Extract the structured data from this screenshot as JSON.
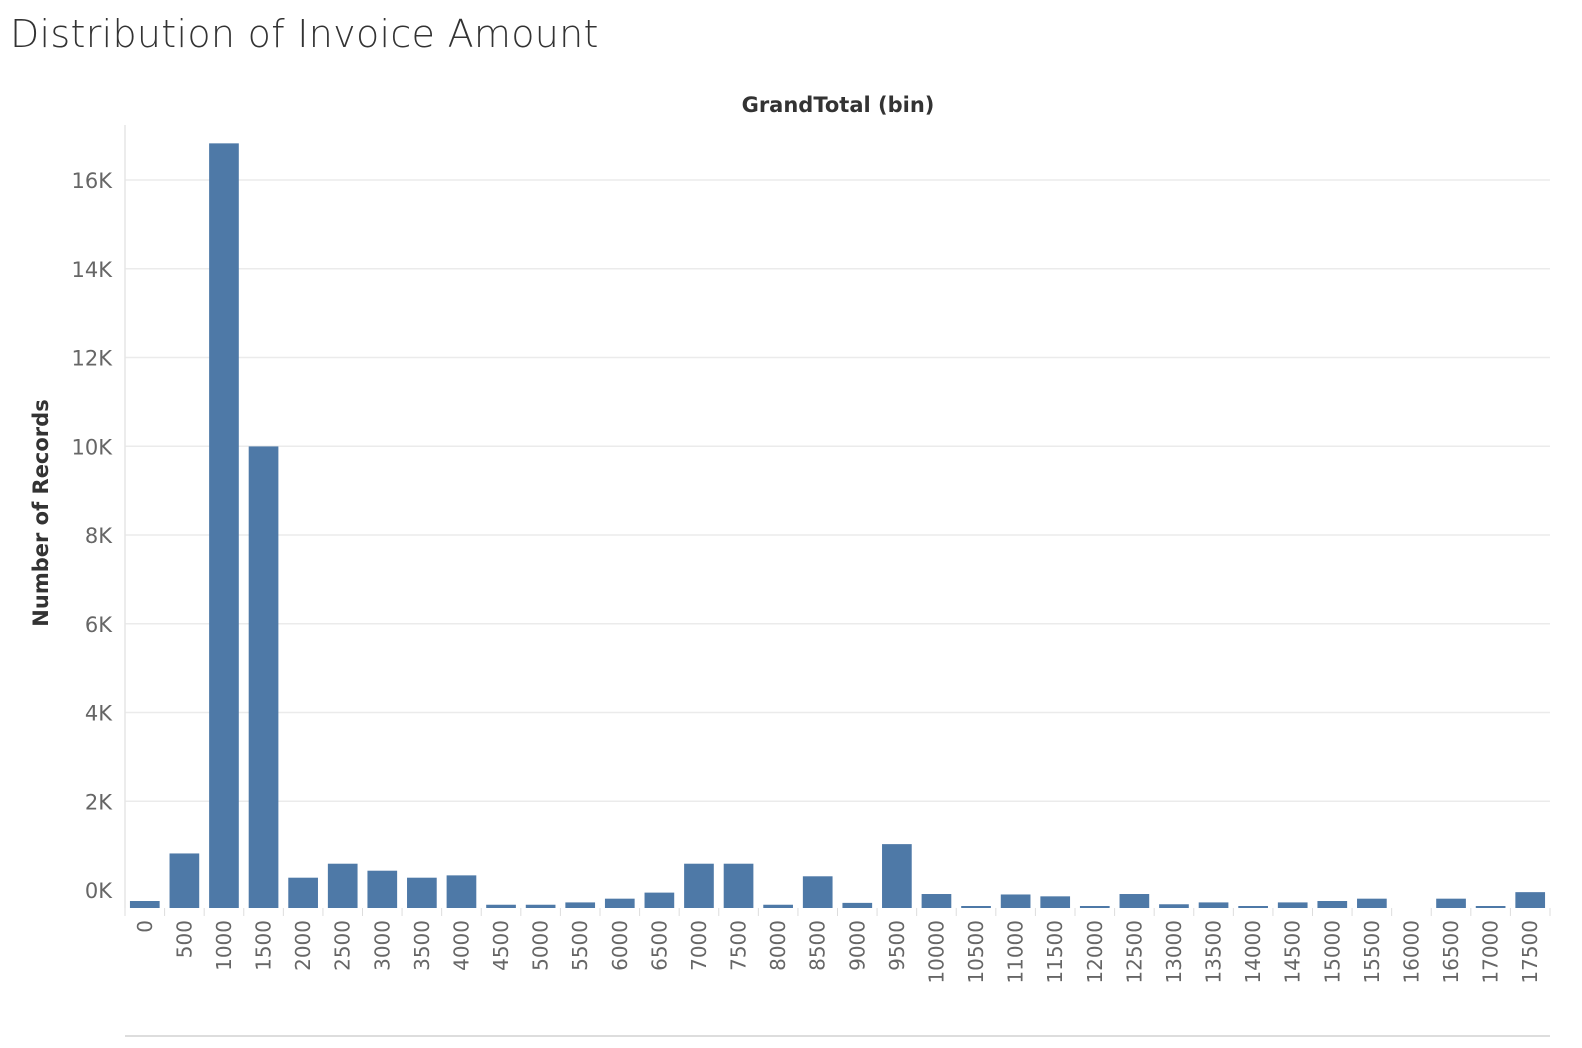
{
  "page": {
    "title": "Distribution of Invoice Amount"
  },
  "chart_data": {
    "type": "bar",
    "title": "Distribution of Invoice Amount",
    "xlabel": "GrandTotal (bin)",
    "ylabel": "Number of Records",
    "ylim": [
      0,
      16400
    ],
    "yticks": [
      0,
      2000,
      4000,
      6000,
      8000,
      10000,
      12000,
      14000,
      16000
    ],
    "ytick_labels": [
      "0K",
      "2K",
      "4K",
      "6K",
      "8K",
      "10K",
      "12K",
      "14K",
      "16K"
    ],
    "grid": true,
    "bar_color": "#4e79a7",
    "categories": [
      "0",
      "500",
      "1000",
      "1500",
      "2000",
      "2500",
      "3000",
      "3500",
      "4000",
      "4500",
      "5000",
      "5500",
      "6000",
      "6500",
      "7000",
      "7500",
      "8000",
      "8500",
      "9000",
      "9500",
      "10000",
      "10500",
      "11000",
      "11500",
      "12000",
      "12500",
      "13000",
      "13500",
      "14000",
      "14500",
      "15000",
      "15500",
      "16000",
      "16500",
      "17000",
      "17500"
    ],
    "values": [
      150,
      1170,
      16400,
      9900,
      650,
      950,
      800,
      650,
      700,
      70,
      70,
      120,
      200,
      330,
      950,
      950,
      70,
      680,
      110,
      1370,
      300,
      30,
      290,
      250,
      30,
      300,
      80,
      120,
      30,
      120,
      150,
      200,
      0,
      200,
      30,
      340
    ]
  }
}
